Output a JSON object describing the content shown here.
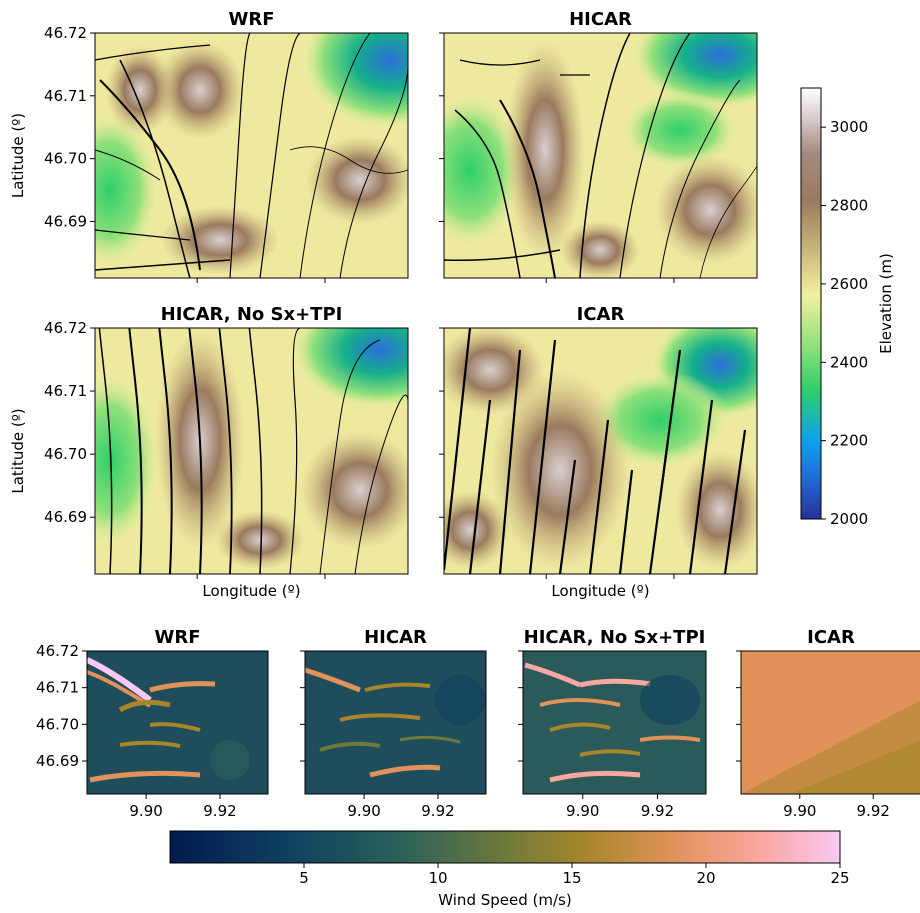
{
  "chart_data": [
    {
      "type": "heatmap",
      "title": "WRF",
      "field": "elevation with wind streamlines",
      "ylabel": "Latitude (º)",
      "xlabel": "",
      "y_ticks": [
        "46.72",
        "46.71",
        "46.70",
        "46.69"
      ],
      "y_tick_values": [
        46.72,
        46.71,
        46.7,
        46.69
      ],
      "xlim": [
        9.884,
        9.933
      ],
      "ylim": [
        46.681,
        46.72
      ]
    },
    {
      "type": "heatmap",
      "title": "HICAR",
      "field": "elevation with wind streamlines",
      "xlim": [
        9.884,
        9.933
      ],
      "ylim": [
        46.681,
        46.72
      ]
    },
    {
      "type": "heatmap",
      "title": "HICAR, No Sx+TPI",
      "field": "elevation with wind streamlines",
      "ylabel": "Latitude (º)",
      "xlabel": "Longitude (º)",
      "y_ticks": [
        "46.72",
        "46.71",
        "46.70",
        "46.69"
      ],
      "xlim": [
        9.884,
        9.933
      ],
      "ylim": [
        46.681,
        46.72
      ]
    },
    {
      "type": "heatmap",
      "title": "ICAR",
      "field": "elevation with wind streamlines",
      "xlabel": "Longitude (º)",
      "xlim": [
        9.884,
        9.933
      ],
      "ylim": [
        46.681,
        46.72
      ]
    },
    {
      "type": "heatmap",
      "title": "WRF",
      "field": "wind speed",
      "y_ticks": [
        "46.72",
        "46.71",
        "46.70",
        "46.69"
      ],
      "x_ticks": [
        "9.90",
        "9.92"
      ],
      "x_tick_values": [
        9.9,
        9.92
      ],
      "xlim": [
        9.884,
        9.933
      ],
      "ylim": [
        46.681,
        46.72
      ]
    },
    {
      "type": "heatmap",
      "title": "HICAR",
      "field": "wind speed",
      "x_ticks": [
        "9.90",
        "9.92"
      ],
      "xlim": [
        9.884,
        9.933
      ],
      "ylim": [
        46.681,
        46.72
      ]
    },
    {
      "type": "heatmap",
      "title": "HICAR, No Sx+TPI",
      "field": "wind speed",
      "x_ticks": [
        "9.90",
        "9.92"
      ],
      "xlim": [
        9.884,
        9.933
      ],
      "ylim": [
        46.681,
        46.72
      ]
    },
    {
      "type": "heatmap",
      "title": "ICAR",
      "field": "wind speed",
      "x_ticks": [
        "9.90",
        "9.92"
      ],
      "xlim": [
        9.884,
        9.933
      ],
      "ylim": [
        46.681,
        46.72
      ]
    }
  ],
  "colorbars": {
    "elevation": {
      "label": "Elevation (m)",
      "range": [
        2000,
        3100
      ],
      "ticks": [
        "2000",
        "2200",
        "2400",
        "2600",
        "2800",
        "3000"
      ],
      "tick_values": [
        2000,
        2200,
        2400,
        2600,
        2800,
        3000
      ],
      "colormap": "terrain"
    },
    "wind_speed": {
      "label": "Wind Speed (m/s)",
      "range": [
        0,
        25
      ],
      "ticks": [
        "5",
        "10",
        "15",
        "20",
        "25"
      ],
      "tick_values": [
        5,
        10,
        15,
        20,
        25
      ],
      "colormap": "batlow-like"
    }
  }
}
